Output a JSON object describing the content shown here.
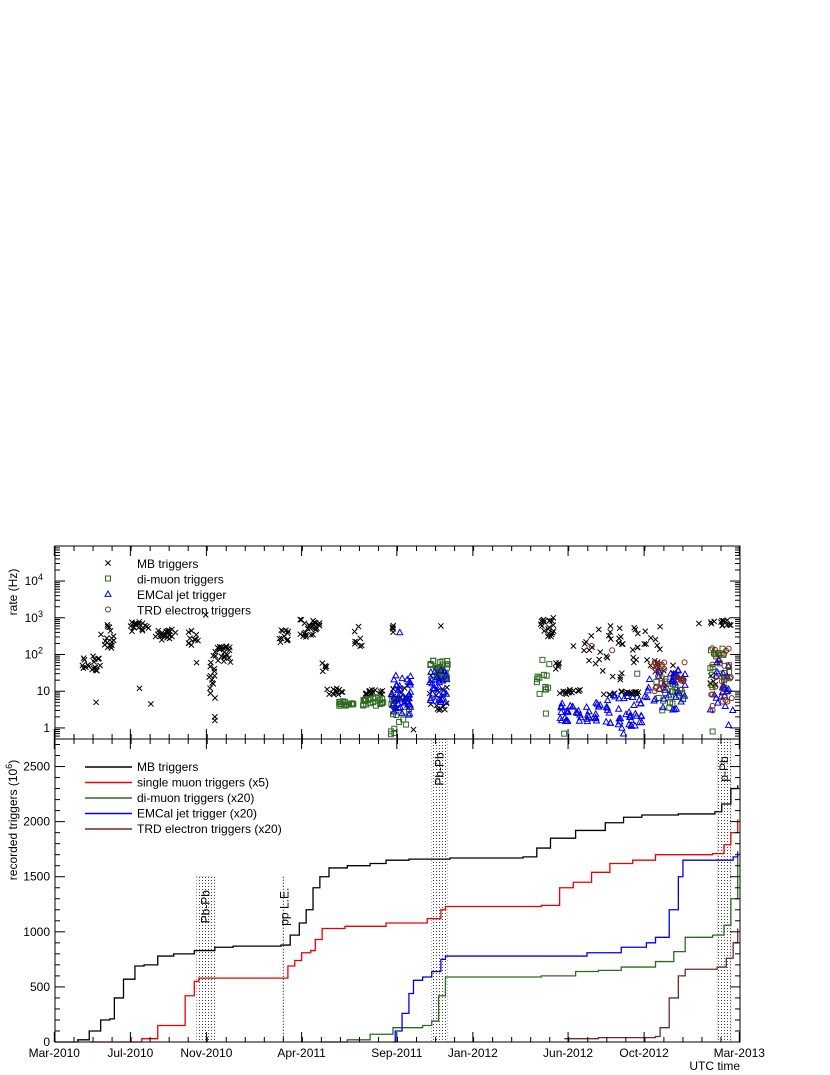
{
  "chart_data": [
    {
      "type": "scatter",
      "ylabel": "rate (Hz)",
      "yscale": "log",
      "ylim": [
        0.5,
        90000
      ],
      "y_ticks": [
        "1",
        "10",
        "10^2",
        "10^3",
        "10^4"
      ],
      "legend_position": "top-left",
      "series": [
        {
          "name": "MB triggers",
          "marker": "x",
          "color": "#000000",
          "clusters": [
            {
              "t0": 2010.28,
              "t1": 2010.37,
              "y0": 30,
              "y1": 90,
              "n": 20
            },
            {
              "t0": 2010.37,
              "t1": 2010.44,
              "y0": 150,
              "y1": 700,
              "n": 18
            },
            {
              "t0": 2010.5,
              "t1": 2010.58,
              "y0": 350,
              "y1": 800,
              "n": 18
            },
            {
              "t0": 2010.61,
              "t1": 2010.7,
              "y0": 250,
              "y1": 480,
              "n": 22
            },
            {
              "t0": 2010.75,
              "t1": 2010.8,
              "y0": 180,
              "y1": 450,
              "n": 10
            },
            {
              "t0": 2010.84,
              "t1": 2010.88,
              "y0": 6,
              "y1": 100,
              "n": 14
            },
            {
              "t0": 2010.87,
              "t1": 2010.94,
              "y0": 60,
              "y1": 170,
              "n": 22
            },
            {
              "t0": 2011.15,
              "t1": 2011.2,
              "y0": 200,
              "y1": 500,
              "n": 12
            },
            {
              "t0": 2011.24,
              "t1": 2011.33,
              "y0": 300,
              "y1": 900,
              "n": 28
            },
            {
              "t0": 2011.34,
              "t1": 2011.36,
              "y0": 30,
              "y1": 80,
              "n": 5
            },
            {
              "t0": 2011.36,
              "t1": 2011.43,
              "y0": 8,
              "y1": 12,
              "n": 12
            },
            {
              "t0": 2011.48,
              "t1": 2011.52,
              "y0": 150,
              "y1": 650,
              "n": 8
            },
            {
              "t0": 2011.53,
              "t1": 2011.61,
              "y0": 8,
              "y1": 11,
              "n": 16
            },
            {
              "t0": 2011.64,
              "t1": 2011.66,
              "y0": 400,
              "y1": 650,
              "n": 5
            },
            {
              "t0": 2011.64,
              "t1": 2011.72,
              "y0": 3,
              "y1": 15,
              "n": 22
            },
            {
              "t0": 2011.81,
              "t1": 2011.89,
              "y0": 3,
              "y1": 50,
              "n": 26
            },
            {
              "t0": 2012.29,
              "t1": 2012.36,
              "y0": 300,
              "y1": 1000,
              "n": 20
            },
            {
              "t0": 2012.36,
              "t1": 2012.38,
              "y0": 30,
              "y1": 200,
              "n": 5
            },
            {
              "t0": 2012.38,
              "t1": 2012.47,
              "y0": 8,
              "y1": 11,
              "n": 14
            },
            {
              "t0": 2012.47,
              "t1": 2012.66,
              "y0": 20,
              "y1": 700,
              "n": 28
            },
            {
              "t0": 2012.56,
              "t1": 2012.73,
              "y0": 8,
              "y1": 10,
              "n": 24
            },
            {
              "t0": 2012.7,
              "t1": 2012.9,
              "y0": 30,
              "y1": 700,
              "n": 26
            },
            {
              "t0": 2013.04,
              "t1": 2013.14,
              "y0": 600,
              "y1": 900,
              "n": 14
            },
            {
              "t0": 2013.04,
              "t1": 2013.07,
              "y0": 15,
              "y1": 40,
              "n": 5
            }
          ],
          "points": [
            [
              2010.35,
              5
            ],
            [
              2010.54,
              12
            ],
            [
              2010.59,
              4.5
            ],
            [
              2010.79,
              60
            ],
            [
              2010.83,
              1200
            ],
            [
              2010.87,
              2
            ],
            [
              2010.87,
              1.6
            ],
            [
              2011.86,
              600
            ],
            [
              2011.74,
              0.9
            ],
            [
              2012.99,
              700
            ],
            [
              2012.44,
              170
            ]
          ]
        },
        {
          "name": "di-muon triggers",
          "marker": "square",
          "color": "#2e6b1e",
          "clusters": [
            {
              "t0": 2011.41,
              "t1": 2011.48,
              "y0": 4,
              "y1": 5.5,
              "n": 16
            },
            {
              "t0": 2011.5,
              "t1": 2011.61,
              "y0": 4,
              "y1": 7,
              "n": 22
            },
            {
              "t0": 2011.64,
              "t1": 2011.73,
              "y0": 0.6,
              "y1": 8,
              "n": 16
            },
            {
              "t0": 2011.81,
              "t1": 2011.89,
              "y0": 20,
              "y1": 70,
              "n": 28
            },
            {
              "t0": 2012.28,
              "t1": 2012.34,
              "y0": 2,
              "y1": 100,
              "n": 14
            },
            {
              "t0": 2012.8,
              "t1": 2012.93,
              "y0": 3,
              "y1": 25,
              "n": 22
            },
            {
              "t0": 2013.04,
              "t1": 2013.13,
              "y0": 10,
              "y1": 160,
              "n": 22
            }
          ],
          "points": [
            [
              2012.4,
              0.7
            ],
            [
              2012.72,
              30
            ],
            [
              2013.05,
              0.8
            ]
          ]
        },
        {
          "name": "EMCal jet trigger",
          "marker": "triangle",
          "color": "#0000ee",
          "clusters": [
            {
              "t0": 2011.64,
              "t1": 2011.73,
              "y0": 2,
              "y1": 30,
              "n": 40
            },
            {
              "t0": 2011.81,
              "t1": 2011.89,
              "y0": 5,
              "y1": 40,
              "n": 32
            },
            {
              "t0": 2012.38,
              "t1": 2012.57,
              "y0": 1.5,
              "y1": 5,
              "n": 40
            },
            {
              "t0": 2012.57,
              "t1": 2012.74,
              "y0": 1,
              "y1": 8,
              "n": 40
            },
            {
              "t0": 2012.75,
              "t1": 2012.93,
              "y0": 3,
              "y1": 50,
              "n": 40
            },
            {
              "t0": 2013.04,
              "t1": 2013.14,
              "y0": 3,
              "y1": 100,
              "n": 24
            }
          ],
          "points": [
            [
              2011.68,
              400
            ],
            [
              2012.66,
              0.7
            ],
            [
              2013.12,
              1.2
            ]
          ]
        },
        {
          "name": "TRD electron triggers",
          "marker": "circle",
          "color": "#7a2a1a",
          "clusters": [
            {
              "t0": 2012.78,
              "t1": 2012.93,
              "y0": 10,
              "y1": 80,
              "n": 30
            },
            {
              "t0": 2013.03,
              "t1": 2013.14,
              "y0": 5,
              "y1": 150,
              "n": 24
            }
          ],
          "points": [
            [
              2012.52,
              170
            ],
            [
              2012.61,
              130
            ],
            [
              2013.05,
              3
            ],
            [
              2013.05,
              4
            ]
          ]
        }
      ]
    },
    {
      "type": "line",
      "ylabel": "recorded triggers (10^6)",
      "xlabel": "UTC time",
      "ylim": [
        0,
        2750
      ],
      "xlim": [
        2010.17,
        2013.17
      ],
      "y_ticks": [
        0,
        500,
        1000,
        1500,
        2000,
        2500
      ],
      "x_ticks": [
        {
          "t": 2010.167,
          "label": "Mar-2010"
        },
        {
          "t": 2010.5,
          "label": "Jul-2010"
        },
        {
          "t": 2010.833,
          "label": "Nov-2010"
        },
        {
          "t": 2011.25,
          "label": "Apr-2011"
        },
        {
          "t": 2011.667,
          "label": "Sep-2011"
        },
        {
          "t": 2012.0,
          "label": "Jan-2012"
        },
        {
          "t": 2012.417,
          "label": "Jun-2012"
        },
        {
          "t": 2012.75,
          "label": "Oct-2012"
        },
        {
          "t": 2013.167,
          "label": "Mar-2013"
        }
      ],
      "legend_position": "top-left",
      "periods": [
        {
          "label": "Pb-Pb",
          "t0": 2010.79,
          "t1": 2010.87,
          "ymax": 1500
        },
        {
          "label": "pp L.E.",
          "t0": 2011.17,
          "t1": 2011.18,
          "ymax": 1500
        },
        {
          "label": "Pb-Pb",
          "t0": 2011.82,
          "t1": 2011.89,
          "ymax": 2750
        },
        {
          "label": "p-Pb",
          "t0": 2013.07,
          "t1": 2013.13,
          "ymax": 2750
        }
      ],
      "series": [
        {
          "name": "MB triggers",
          "color": "#000000",
          "points": [
            [
              2010.17,
              0
            ],
            [
              2010.22,
              0
            ],
            [
              2010.27,
              20
            ],
            [
              2010.32,
              100
            ],
            [
              2010.37,
              200
            ],
            [
              2010.41,
              210
            ],
            [
              2010.43,
              400
            ],
            [
              2010.47,
              570
            ],
            [
              2010.52,
              690
            ],
            [
              2010.56,
              700
            ],
            [
              2010.62,
              780
            ],
            [
              2010.69,
              800
            ],
            [
              2010.78,
              830
            ],
            [
              2010.87,
              860
            ],
            [
              2010.95,
              870
            ],
            [
              2011.16,
              880
            ],
            [
              2011.2,
              970
            ],
            [
              2011.24,
              1080
            ],
            [
              2011.27,
              1200
            ],
            [
              2011.3,
              1400
            ],
            [
              2011.33,
              1500
            ],
            [
              2011.37,
              1580
            ],
            [
              2011.45,
              1600
            ],
            [
              2011.55,
              1620
            ],
            [
              2011.62,
              1650
            ],
            [
              2011.72,
              1660
            ],
            [
              2011.9,
              1670
            ],
            [
              2012.22,
              1680
            ],
            [
              2012.28,
              1760
            ],
            [
              2012.34,
              1850
            ],
            [
              2012.45,
              1920
            ],
            [
              2012.58,
              1990
            ],
            [
              2012.66,
              2040
            ],
            [
              2012.74,
              2060
            ],
            [
              2012.9,
              2070
            ],
            [
              2013.06,
              2090
            ],
            [
              2013.09,
              2160
            ],
            [
              2013.13,
              2300
            ],
            [
              2013.16,
              2330
            ]
          ]
        },
        {
          "name": "single muon triggers (x5)",
          "color": "#ee0000",
          "points": [
            [
              2010.32,
              0
            ],
            [
              2010.45,
              0
            ],
            [
              2010.55,
              30
            ],
            [
              2010.62,
              150
            ],
            [
              2010.7,
              150
            ],
            [
              2010.74,
              420
            ],
            [
              2010.78,
              550
            ],
            [
              2010.8,
              580
            ],
            [
              2011.17,
              580
            ],
            [
              2011.19,
              690
            ],
            [
              2011.22,
              740
            ],
            [
              2011.25,
              810
            ],
            [
              2011.29,
              830
            ],
            [
              2011.31,
              930
            ],
            [
              2011.34,
              1030
            ],
            [
              2011.44,
              1050
            ],
            [
              2011.62,
              1080
            ],
            [
              2011.8,
              1120
            ],
            [
              2011.86,
              1200
            ],
            [
              2011.88,
              1230
            ],
            [
              2012.3,
              1240
            ],
            [
              2012.38,
              1400
            ],
            [
              2012.44,
              1450
            ],
            [
              2012.52,
              1540
            ],
            [
              2012.6,
              1620
            ],
            [
              2012.7,
              1650
            ],
            [
              2012.8,
              1700
            ],
            [
              2013.05,
              1710
            ],
            [
              2013.1,
              1790
            ],
            [
              2013.13,
              1900
            ],
            [
              2013.16,
              2020
            ]
          ]
        },
        {
          "name": "di-muon triggers (x20)",
          "color": "#2e6b1e",
          "points": [
            [
              2011.33,
              0
            ],
            [
              2011.45,
              20
            ],
            [
              2011.55,
              70
            ],
            [
              2011.65,
              130
            ],
            [
              2011.78,
              150
            ],
            [
              2011.82,
              190
            ],
            [
              2011.85,
              420
            ],
            [
              2011.88,
              590
            ],
            [
              2012.3,
              600
            ],
            [
              2012.45,
              640
            ],
            [
              2012.55,
              650
            ],
            [
              2012.65,
              680
            ],
            [
              2012.8,
              730
            ],
            [
              2012.88,
              820
            ],
            [
              2012.93,
              950
            ],
            [
              2013.05,
              970
            ],
            [
              2013.1,
              1060
            ],
            [
              2013.13,
              1300
            ],
            [
              2013.16,
              1700
            ]
          ]
        },
        {
          "name": "EMCal jet trigger (x20)",
          "color": "#0000ee",
          "points": [
            [
              2011.65,
              0
            ],
            [
              2011.66,
              100
            ],
            [
              2011.69,
              260
            ],
            [
              2011.72,
              440
            ],
            [
              2011.74,
              560
            ],
            [
              2011.78,
              590
            ],
            [
              2011.82,
              640
            ],
            [
              2011.86,
              750
            ],
            [
              2011.88,
              780
            ],
            [
              2012.3,
              780
            ],
            [
              2012.5,
              810
            ],
            [
              2012.65,
              860
            ],
            [
              2012.76,
              900
            ],
            [
              2012.8,
              950
            ],
            [
              2012.86,
              1200
            ],
            [
              2012.9,
              1500
            ],
            [
              2012.92,
              1650
            ],
            [
              2013.08,
              1650
            ],
            [
              2013.14,
              1680
            ],
            [
              2013.16,
              1730
            ]
          ]
        },
        {
          "name": "TRD electron triggers (x20)",
          "color": "#6b2b2b",
          "points": [
            [
              2012.4,
              30
            ],
            [
              2012.55,
              40
            ],
            [
              2012.8,
              50
            ],
            [
              2012.82,
              130
            ],
            [
              2012.86,
              400
            ],
            [
              2012.9,
              600
            ],
            [
              2012.93,
              660
            ],
            [
              2013.07,
              680
            ],
            [
              2013.11,
              760
            ],
            [
              2013.14,
              900
            ],
            [
              2013.16,
              1030
            ]
          ]
        }
      ]
    }
  ]
}
